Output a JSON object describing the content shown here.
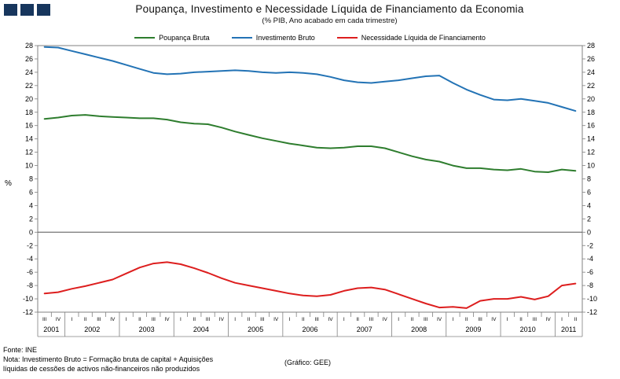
{
  "header": {
    "title": "Poupança, Investimento e Necessidade Líquida de Financiamento da Economia",
    "subtitle": "(% PIB, Ano acabado em cada trimestre)"
  },
  "logo_color": "#17365d",
  "footer": {
    "source": "Fonte: INE",
    "note_line1": "Nota: Investimento Bruto = Formação bruta de capital + Aquisições",
    "note_line2": "líquidas de cessões de activos não-financeiros não produzidos",
    "credit": "(Gráfico: GEE)"
  },
  "chart_data": {
    "type": "line",
    "title": "Poupança, Investimento e Necessidade Líquida de Financiamento da Economia",
    "subtitle": "(% PIB, Ano acabado em cada trimestre)",
    "xlabel": "",
    "ylabel": "%",
    "ylim": [
      -12,
      28
    ],
    "ytick_step": 2,
    "grid": false,
    "legend_position": "top",
    "x_quarters": [
      "III",
      "IV",
      "I",
      "II",
      "III",
      "IV",
      "I",
      "II",
      "III",
      "IV",
      "I",
      "II",
      "III",
      "IV",
      "I",
      "II",
      "III",
      "IV",
      "I",
      "II",
      "III",
      "IV",
      "I",
      "II",
      "III",
      "IV",
      "I",
      "II",
      "III",
      "IV",
      "I",
      "II",
      "III",
      "IV",
      "I",
      "II",
      "III",
      "IV",
      "I",
      "II"
    ],
    "x_years": [
      {
        "label": "2001",
        "span": 2
      },
      {
        "label": "2002",
        "span": 4
      },
      {
        "label": "2003",
        "span": 4
      },
      {
        "label": "2004",
        "span": 4
      },
      {
        "label": "2005",
        "span": 4
      },
      {
        "label": "2006",
        "span": 4
      },
      {
        "label": "2007",
        "span": 4
      },
      {
        "label": "2008",
        "span": 4
      },
      {
        "label": "2009",
        "span": 4
      },
      {
        "label": "2010",
        "span": 4
      },
      {
        "label": "2011",
        "span": 2
      }
    ],
    "series": [
      {
        "name": "Poupança Bruta",
        "color": "#2e7d2e",
        "values": [
          17.0,
          17.2,
          17.5,
          17.6,
          17.4,
          17.3,
          17.2,
          17.1,
          17.1,
          16.9,
          16.5,
          16.3,
          16.2,
          15.7,
          15.1,
          14.6,
          14.1,
          13.7,
          13.3,
          13.0,
          12.7,
          12.6,
          12.7,
          12.9,
          12.9,
          12.6,
          12.0,
          11.4,
          10.9,
          10.6,
          10.0,
          9.6,
          9.6,
          9.4,
          9.3,
          9.5,
          9.1,
          9.0,
          9.4,
          9.2
        ]
      },
      {
        "name": "Investimento Bruto",
        "color": "#2373b5",
        "values": [
          27.8,
          27.7,
          27.2,
          26.7,
          26.2,
          25.7,
          25.1,
          24.5,
          23.9,
          23.7,
          23.8,
          24.0,
          24.1,
          24.2,
          24.3,
          24.2,
          24.0,
          23.9,
          24.0,
          23.9,
          23.7,
          23.3,
          22.8,
          22.5,
          22.4,
          22.6,
          22.8,
          23.1,
          23.4,
          23.5,
          22.4,
          21.4,
          20.6,
          19.9,
          19.8,
          20.0,
          19.7,
          19.4,
          18.8,
          18.2
        ]
      },
      {
        "name": "Necessidade Líquida de Financiamento",
        "color": "#dd1e1e",
        "values": [
          -9.2,
          -9.0,
          -8.5,
          -8.1,
          -7.6,
          -7.1,
          -6.2,
          -5.3,
          -4.7,
          -4.5,
          -4.8,
          -5.4,
          -6.1,
          -6.9,
          -7.6,
          -8.0,
          -8.4,
          -8.8,
          -9.2,
          -9.5,
          -9.6,
          -9.4,
          -8.8,
          -8.4,
          -8.3,
          -8.6,
          -9.3,
          -10.0,
          -10.7,
          -11.3,
          -11.2,
          -11.4,
          -10.3,
          -10.0,
          -10.0,
          -9.7,
          -10.1,
          -9.6,
          -8.0,
          -7.7
        ]
      }
    ]
  }
}
